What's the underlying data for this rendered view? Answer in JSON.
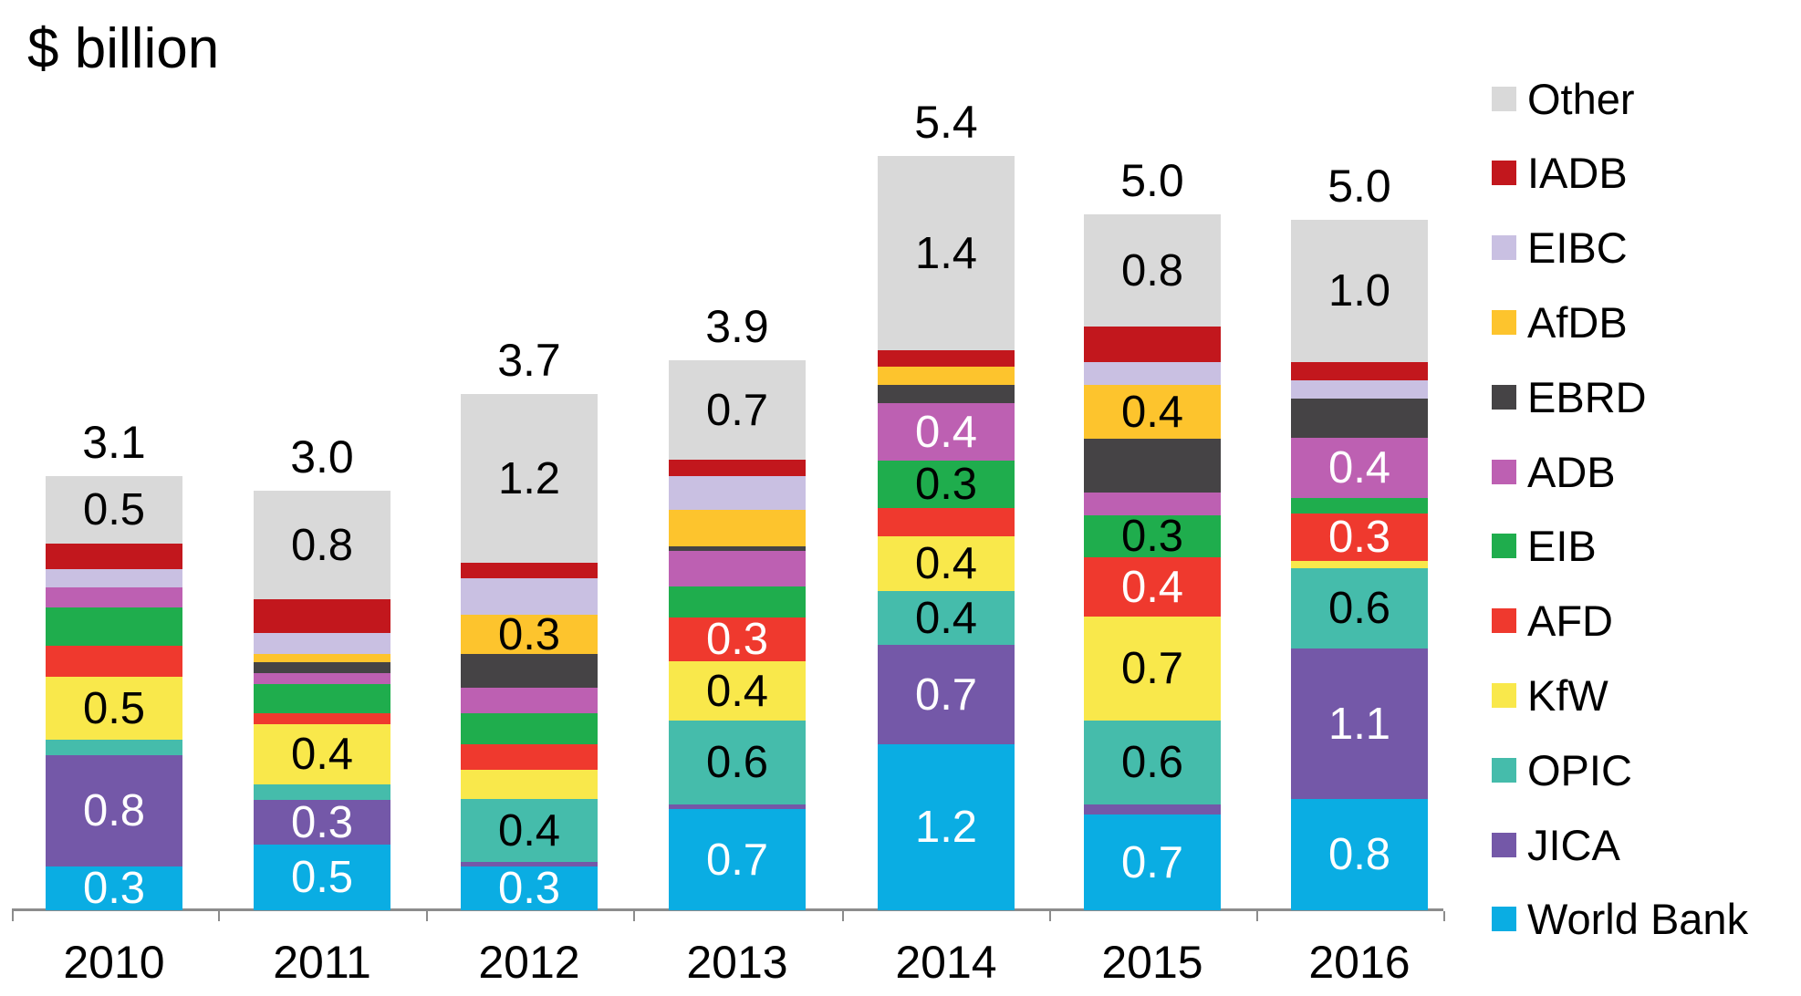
{
  "chart_data": {
    "type": "bar",
    "subtype": "stacked-vertical",
    "title": "$ billion",
    "unit": "$ billion",
    "categories": [
      "2010",
      "2011",
      "2012",
      "2013",
      "2014",
      "2015",
      "2016"
    ],
    "totals": [
      "3.1",
      "3.0",
      "3.7",
      "3.9",
      "5.4",
      "5.0",
      "5.0"
    ],
    "ylim": [
      0,
      6
    ],
    "grid": false,
    "legend_position": "right",
    "legend_order_top_to_bottom": [
      "Other",
      "IADB",
      "EIBC",
      "AfDB",
      "EBRD",
      "ADB",
      "EIB",
      "AFD",
      "KfW",
      "OPIC",
      "JICA",
      "World Bank"
    ],
    "series": [
      {
        "name": "World Bank",
        "color": "#0aade3",
        "label_color": "#ffffff",
        "values": [
          0.31,
          0.47,
          0.31,
          0.72,
          1.18,
          0.68,
          0.79
        ],
        "labels": [
          "0.3",
          "0.5",
          "0.3",
          "0.7",
          "1.2",
          "0.7",
          "0.8"
        ]
      },
      {
        "name": "JICA",
        "color": "#7458a8",
        "label_color": "#ffffff",
        "values": [
          0.79,
          0.32,
          0.03,
          0.03,
          0.71,
          0.07,
          1.07
        ],
        "labels": [
          "0.8",
          "0.3",
          "",
          "",
          "0.7",
          "",
          "1.1"
        ]
      },
      {
        "name": "OPIC",
        "color": "#45bcab",
        "label_color": "#000000",
        "values": [
          0.11,
          0.11,
          0.45,
          0.6,
          0.38,
          0.6,
          0.57
        ],
        "labels": [
          "",
          "",
          "0.4",
          "0.6",
          "0.4",
          "0.6",
          "0.6"
        ]
      },
      {
        "name": "KfW",
        "color": "#f9e84b",
        "label_color": "#000000",
        "values": [
          0.45,
          0.43,
          0.21,
          0.42,
          0.39,
          0.74,
          0.05
        ],
        "labels": [
          "0.5",
          "0.4",
          "",
          "0.4",
          "0.4",
          "0.7",
          ""
        ]
      },
      {
        "name": "AFD",
        "color": "#ef392e",
        "label_color": "#ffffff",
        "values": [
          0.22,
          0.08,
          0.18,
          0.31,
          0.2,
          0.42,
          0.34
        ],
        "labels": [
          "",
          "",
          "",
          "0.3",
          "",
          "0.4",
          "0.3"
        ]
      },
      {
        "name": "EIB",
        "color": "#1fad4d",
        "label_color": "#000000",
        "values": [
          0.27,
          0.21,
          0.22,
          0.22,
          0.34,
          0.3,
          0.11
        ],
        "labels": [
          "",
          "",
          "",
          "",
          "0.3",
          "0.3",
          ""
        ]
      },
      {
        "name": "ADB",
        "color": "#bd60b2",
        "label_color": "#ffffff",
        "values": [
          0.14,
          0.08,
          0.18,
          0.25,
          0.41,
          0.16,
          0.43
        ],
        "labels": [
          "",
          "",
          "",
          "",
          "0.4",
          "",
          "0.4"
        ]
      },
      {
        "name": "EBRD",
        "color": "#454345",
        "label_color": "#ffffff",
        "values": [
          0.0,
          0.08,
          0.24,
          0.03,
          0.13,
          0.38,
          0.28
        ],
        "labels": [
          "",
          "",
          "",
          "",
          "",
          "",
          ""
        ]
      },
      {
        "name": "AfDB",
        "color": "#fdc42d",
        "label_color": "#000000",
        "values": [
          0.0,
          0.06,
          0.28,
          0.26,
          0.13,
          0.38,
          0.0
        ],
        "labels": [
          "",
          "",
          "0.3",
          "",
          "",
          "0.4",
          ""
        ]
      },
      {
        "name": "EIBC",
        "color": "#c9c0e2",
        "label_color": "#000000",
        "values": [
          0.13,
          0.15,
          0.26,
          0.24,
          0.0,
          0.16,
          0.13
        ],
        "labels": [
          "",
          "",
          "",
          "",
          "",
          "",
          ""
        ]
      },
      {
        "name": "IADB",
        "color": "#c2171d",
        "label_color": "#ffffff",
        "values": [
          0.18,
          0.24,
          0.11,
          0.12,
          0.12,
          0.25,
          0.13
        ],
        "labels": [
          "",
          "",
          "",
          "",
          "",
          "",
          ""
        ]
      },
      {
        "name": "Other",
        "color": "#d9d9d9",
        "label_color": "#000000",
        "values": [
          0.48,
          0.77,
          1.2,
          0.71,
          1.38,
          0.8,
          1.01
        ],
        "labels": [
          "0.5",
          "0.8",
          "1.2",
          "0.7",
          "1.4",
          "0.8",
          "1.0"
        ]
      }
    ]
  }
}
